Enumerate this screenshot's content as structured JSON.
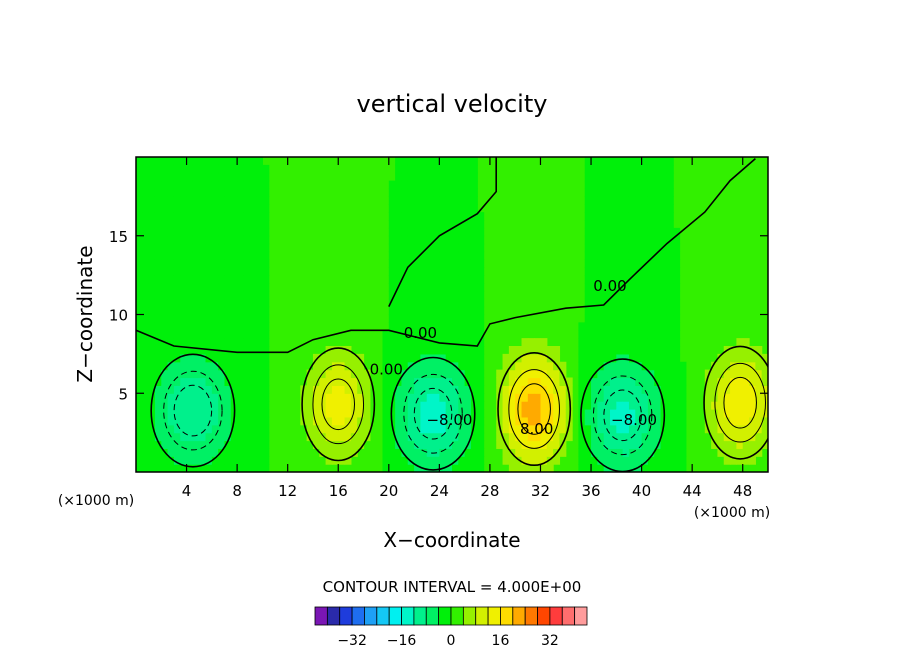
{
  "chart_data": {
    "type": "heatmap",
    "title": "vertical velocity",
    "xlabel": "X−coordinate",
    "ylabel": "Z−coordinate",
    "x_unit_left": "(×1000 m)",
    "x_unit_right": "(×1000 m)",
    "xlim": [
      0,
      50
    ],
    "ylim": [
      0,
      20
    ],
    "x_ticks": [
      4,
      8,
      12,
      16,
      20,
      24,
      28,
      32,
      36,
      40,
      44,
      48
    ],
    "y_ticks": [
      5,
      10,
      15
    ],
    "contour_interval_text": "CONTOUR INTERVAL = 4.000E+00",
    "contour_labels": [
      {
        "text": "0.00",
        "x": 22.5,
        "y": 8.5
      },
      {
        "text": "0.00",
        "x": 19.8,
        "y": 6.2
      },
      {
        "text": "0.00",
        "x": 37.5,
        "y": 11.5
      },
      {
        "text": "−8.00",
        "x": 24.8,
        "y": 3.0
      },
      {
        "text": "−8.00",
        "x": 39.4,
        "y": 3.0
      },
      {
        "text": "8.00",
        "x": 31.7,
        "y": 2.4
      }
    ],
    "features": [
      {
        "kind": "updraft",
        "x": 16.0,
        "z": 4.3,
        "peak": 14
      },
      {
        "kind": "updraft",
        "x": 31.5,
        "z": 4.0,
        "peak": 22
      },
      {
        "kind": "updraft",
        "x": 47.8,
        "z": 4.4,
        "peak": 15
      },
      {
        "kind": "downdraft",
        "x": 4.5,
        "z": 3.9,
        "peak": -12
      },
      {
        "kind": "downdraft",
        "x": 23.5,
        "z": 3.7,
        "peak": -14
      },
      {
        "kind": "downdraft",
        "x": 38.5,
        "z": 3.6,
        "peak": -13
      }
    ],
    "colorbar": {
      "ticks": [
        "−32",
        "−16",
        "0",
        "16",
        "32"
      ],
      "tick_values": [
        -32,
        -16,
        0,
        16,
        32
      ],
      "colors": [
        "#7a16b4",
        "#2a2aaa",
        "#1e3cdc",
        "#1e6ef0",
        "#1ea0f5",
        "#14c8f5",
        "#00f0f0",
        "#00f5c8",
        "#00f08c",
        "#00f064",
        "#00f00a",
        "#32f000",
        "#96f000",
        "#d2f000",
        "#f0f000",
        "#ffdc00",
        "#ffaa00",
        "#ff7800",
        "#ff4600",
        "#ff3c3c",
        "#ff6e6e",
        "#ff9c9c"
      ]
    }
  }
}
